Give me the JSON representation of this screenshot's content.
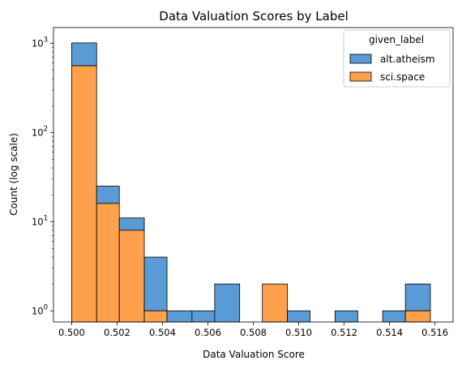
{
  "chart_data": {
    "type": "bar",
    "subtype": "stacked-histogram",
    "title": "Data Valuation Scores by Label",
    "xlabel": "Data Valuation Score",
    "ylabel": "Count (log scale)",
    "yscale": "log",
    "xlim": [
      0.4992,
      0.5168
    ],
    "ylim": [
      0.75,
      1500
    ],
    "xticks": [
      {
        "value": 0.5,
        "label": "0.500"
      },
      {
        "value": 0.502,
        "label": "0.502"
      },
      {
        "value": 0.504,
        "label": "0.504"
      },
      {
        "value": 0.506,
        "label": "0.506"
      },
      {
        "value": 0.508,
        "label": "0.508"
      },
      {
        "value": 0.51,
        "label": "0.510"
      },
      {
        "value": 0.512,
        "label": "0.512"
      },
      {
        "value": 0.514,
        "label": "0.514"
      },
      {
        "value": 0.516,
        "label": "0.516"
      }
    ],
    "yticks": [
      {
        "value": 1,
        "base": "10",
        "exp": "0"
      },
      {
        "value": 10,
        "base": "10",
        "exp": "1"
      },
      {
        "value": 100,
        "base": "10",
        "exp": "2"
      },
      {
        "value": 1000,
        "base": "10",
        "exp": "3"
      }
    ],
    "bin_edges": [
      0.5,
      0.5011,
      0.5021,
      0.5032,
      0.5042,
      0.5053,
      0.5063,
      0.5074,
      0.5084,
      0.5095,
      0.5105,
      0.5116,
      0.5126,
      0.5137,
      0.5147,
      0.5158
    ],
    "series": [
      {
        "name": "alt.atheism",
        "color": "#5b9bd5",
        "values": [
          450,
          9,
          3,
          3,
          1,
          1,
          2,
          0,
          0,
          1,
          0,
          1,
          0,
          1,
          1
        ]
      },
      {
        "name": "sci.space",
        "color": "#ffa04d",
        "values": [
          560,
          16,
          8,
          1,
          0,
          0,
          0,
          0,
          2,
          0,
          0,
          0,
          0,
          0,
          1
        ]
      }
    ],
    "totals": [
      1010,
      25,
      11,
      4,
      1,
      1,
      2,
      0,
      2,
      1,
      0,
      1,
      0,
      1,
      2
    ],
    "legend": {
      "title": "given_label",
      "position": "upper right"
    },
    "grid": false
  }
}
